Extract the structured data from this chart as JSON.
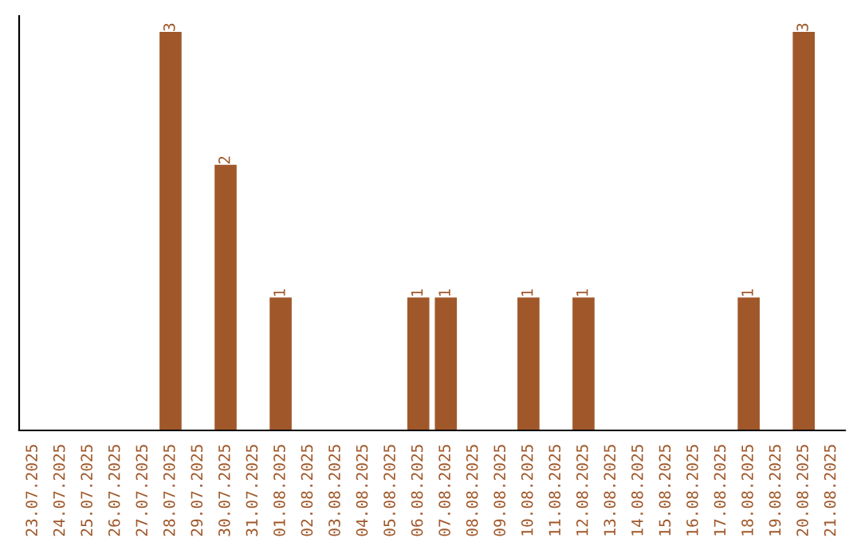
{
  "chart_data": {
    "type": "bar",
    "categories": [
      "23.07.2025",
      "24.07.2025",
      "25.07.2025",
      "26.07.2025",
      "27.07.2025",
      "28.07.2025",
      "29.07.2025",
      "30.07.2025",
      "31.07.2025",
      "01.08.2025",
      "02.08.2025",
      "03.08.2025",
      "04.08.2025",
      "05.08.2025",
      "06.08.2025",
      "07.08.2025",
      "08.08.2025",
      "09.08.2025",
      "10.08.2025",
      "11.08.2025",
      "12.08.2025",
      "13.08.2025",
      "14.08.2025",
      "15.08.2025",
      "16.08.2025",
      "17.08.2025",
      "18.08.2025",
      "19.08.2025",
      "20.08.2025",
      "21.08.2025"
    ],
    "values": [
      0,
      0,
      0,
      0,
      0,
      3,
      0,
      2,
      0,
      1,
      0,
      0,
      0,
      0,
      1,
      1,
      0,
      0,
      1,
      0,
      1,
      0,
      0,
      0,
      0,
      0,
      1,
      0,
      3,
      0
    ],
    "value_labels": [
      null,
      null,
      null,
      null,
      null,
      "3",
      null,
      "2",
      null,
      "1",
      null,
      null,
      null,
      null,
      "1",
      "1",
      null,
      null,
      "1",
      null,
      "1",
      null,
      null,
      null,
      null,
      null,
      "1",
      null,
      "3",
      null
    ],
    "color": "#a0582a",
    "ylim": [
      0,
      3.12
    ],
    "tick_labels": "x",
    "grid": false,
    "legend": false
  }
}
